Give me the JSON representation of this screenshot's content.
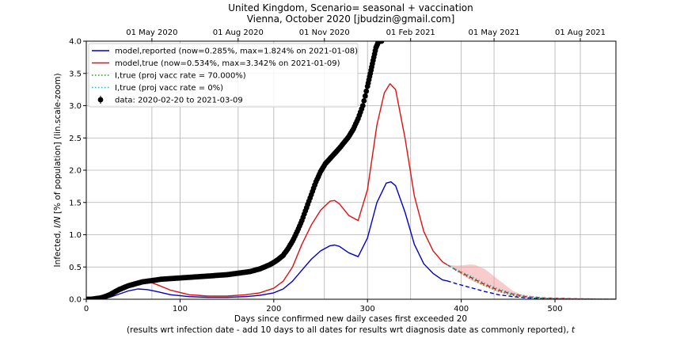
{
  "chart_data": {
    "type": "line",
    "title": "United Kingdom, Scenario= seasonal + vaccination",
    "subtitle": "Vienna, October 2020 [jbudzin@gmail.com]",
    "xlabel": "Days since confirmed new daily cases first exceeded 20",
    "xlabel2_pre": "(results wrt infection date - add 10 days to all dates for results wrt diagnosis date as commonly reported), ",
    "xlabel2_var": "t",
    "ylabel_pre": "Infected, ",
    "ylabel_var": "I/N",
    "ylabel_post": " [% of population] (lin.scale-zoom)",
    "xlim": [
      0,
      565
    ],
    "ylim": [
      0,
      4.0
    ],
    "x_ticks": [
      0,
      100,
      200,
      300,
      400,
      500
    ],
    "x_tick_labels": [
      "0",
      "100",
      "200",
      "300",
      "400",
      "500"
    ],
    "y_ticks": [
      0,
      0.5,
      1.0,
      1.5,
      2.0,
      2.5,
      3.0,
      3.5,
      4.0
    ],
    "y_tick_labels": [
      "0.0",
      "0.5",
      "1.0",
      "1.5",
      "2.0",
      "2.5",
      "3.0",
      "3.5",
      "4.0"
    ],
    "top_axis_ticks": [
      {
        "day": 70,
        "label": "01 May 2020"
      },
      {
        "day": 162,
        "label": "01 Aug 2020"
      },
      {
        "day": 254,
        "label": "01 Nov 2020"
      },
      {
        "day": 346,
        "label": "01 Feb 2021"
      },
      {
        "day": 435,
        "label": "01 May 2021"
      },
      {
        "day": 527,
        "label": "01 Aug 2021"
      }
    ],
    "grid": true,
    "legend_position": "top-left",
    "legend": [
      {
        "label": "model,reported (now=0.285%, max=1.824% on 2021-01-08)",
        "color": "#0000cc",
        "style": "solid"
      },
      {
        "label": "model,true (now=0.534%, max=3.342% on 2021-01-09)",
        "color": "#dd1111",
        "style": "solid"
      },
      {
        "label": "I,true (proj vacc rate = 70.000%)",
        "color": "#2e9e2e",
        "style": "dotted"
      },
      {
        "label": "I,true (proj vacc rate = 0%)",
        "color": "#22bbcc",
        "style": "dotted"
      },
      {
        "label": "data: 2020-02-20 to 2021-03-09",
        "color": "#000000",
        "style": "marker"
      }
    ],
    "series": [
      {
        "name": "model,reported",
        "color": "#0000cc",
        "x": [
          0,
          15,
          25,
          35,
          45,
          55,
          65,
          75,
          90,
          110,
          130,
          150,
          170,
          185,
          200,
          210,
          220,
          230,
          240,
          250,
          260,
          265,
          270,
          280,
          290,
          300,
          310,
          320,
          325,
          330,
          340,
          350,
          360,
          370,
          380,
          385
        ],
        "y": [
          0.0,
          0.01,
          0.03,
          0.08,
          0.13,
          0.16,
          0.15,
          0.12,
          0.07,
          0.04,
          0.03,
          0.03,
          0.04,
          0.06,
          0.1,
          0.16,
          0.28,
          0.45,
          0.62,
          0.75,
          0.83,
          0.84,
          0.82,
          0.72,
          0.66,
          0.95,
          1.5,
          1.8,
          1.82,
          1.76,
          1.35,
          0.85,
          0.55,
          0.4,
          0.3,
          0.285
        ]
      },
      {
        "name": "model,reported projection",
        "color": "#0000cc",
        "dashed": true,
        "x": [
          385,
          395,
          410,
          425,
          440,
          455,
          470,
          490,
          520,
          565
        ],
        "y": [
          0.285,
          0.24,
          0.18,
          0.12,
          0.07,
          0.04,
          0.02,
          0.01,
          0.005,
          0.0
        ]
      },
      {
        "name": "model,true",
        "color": "#dd1111",
        "x": [
          0,
          15,
          25,
          35,
          45,
          55,
          65,
          75,
          90,
          110,
          130,
          150,
          170,
          185,
          200,
          210,
          220,
          230,
          240,
          250,
          260,
          265,
          270,
          280,
          290,
          300,
          310,
          318,
          324,
          330,
          340,
          350,
          360,
          370,
          380,
          385
        ],
        "y": [
          0.0,
          0.02,
          0.06,
          0.14,
          0.22,
          0.28,
          0.28,
          0.23,
          0.14,
          0.07,
          0.05,
          0.05,
          0.07,
          0.1,
          0.17,
          0.28,
          0.5,
          0.85,
          1.15,
          1.38,
          1.52,
          1.53,
          1.48,
          1.3,
          1.22,
          1.7,
          2.7,
          3.2,
          3.34,
          3.25,
          2.5,
          1.6,
          1.05,
          0.75,
          0.58,
          0.534
        ]
      },
      {
        "name": "model,true projection",
        "color": "#dd1111",
        "dashed": true,
        "x": [
          385,
          395,
          410,
          425,
          440,
          455,
          470,
          490,
          520,
          565
        ],
        "y": [
          0.534,
          0.45,
          0.34,
          0.23,
          0.14,
          0.08,
          0.04,
          0.02,
          0.008,
          0.0
        ]
      },
      {
        "name": "I,true (proj vacc rate = 70.000%)",
        "color": "#2e9e2e",
        "dotted": true,
        "x": [
          385,
          395,
          410,
          425,
          440,
          455,
          470,
          490,
          520,
          565
        ],
        "y": [
          0.534,
          0.44,
          0.32,
          0.21,
          0.12,
          0.06,
          0.03,
          0.01,
          0.004,
          0.0
        ]
      },
      {
        "name": "I,true (proj vacc rate = 0%)",
        "color": "#22bbcc",
        "dotted": true,
        "x": [
          385,
          395,
          410,
          425,
          440,
          455,
          470,
          490,
          520,
          565
        ],
        "y": [
          0.534,
          0.46,
          0.36,
          0.25,
          0.16,
          0.09,
          0.05,
          0.02,
          0.008,
          0.0
        ]
      }
    ],
    "band": {
      "color": "#f4a0a0",
      "x": [
        385,
        395,
        405,
        410,
        415,
        425,
        440,
        455,
        470,
        480
      ],
      "upper": [
        0.534,
        0.52,
        0.53,
        0.54,
        0.53,
        0.47,
        0.3,
        0.13,
        0.04,
        0.0
      ],
      "lower": [
        0.534,
        0.44,
        0.34,
        0.3,
        0.26,
        0.2,
        0.11,
        0.05,
        0.02,
        0.0
      ]
    },
    "data_points": {
      "name": "data",
      "color": "#000000",
      "x": [
        0,
        5,
        10,
        15,
        20,
        25,
        30,
        35,
        40,
        45,
        50,
        55,
        60,
        65,
        70,
        75,
        80,
        85,
        90,
        95,
        100,
        105,
        110,
        115,
        120,
        125,
        130,
        135,
        140,
        145,
        150,
        155,
        160,
        165,
        170,
        175,
        180,
        185,
        190,
        195,
        200,
        205,
        210,
        215,
        220,
        225,
        230,
        235,
        240,
        245,
        250,
        255,
        260,
        265,
        270,
        275,
        280,
        285,
        290,
        295,
        300,
        303,
        306,
        309,
        312,
        315
      ],
      "y": [
        0.0,
        0.0,
        0.01,
        0.02,
        0.04,
        0.07,
        0.11,
        0.15,
        0.18,
        0.21,
        0.23,
        0.25,
        0.27,
        0.28,
        0.29,
        0.3,
        0.31,
        0.315,
        0.32,
        0.325,
        0.33,
        0.335,
        0.34,
        0.345,
        0.35,
        0.355,
        0.36,
        0.365,
        0.37,
        0.375,
        0.38,
        0.39,
        0.4,
        0.41,
        0.42,
        0.43,
        0.45,
        0.47,
        0.5,
        0.53,
        0.57,
        0.62,
        0.68,
        0.78,
        0.9,
        1.05,
        1.22,
        1.42,
        1.62,
        1.82,
        1.98,
        2.1,
        2.18,
        2.26,
        2.34,
        2.43,
        2.52,
        2.64,
        2.8,
        3.0,
        3.3,
        3.5,
        3.7,
        3.9,
        4.0,
        4.0
      ]
    }
  }
}
